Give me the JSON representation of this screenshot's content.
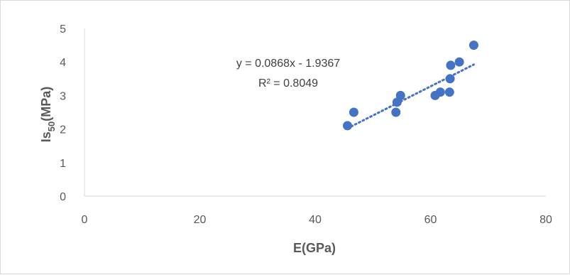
{
  "chart_data": {
    "type": "scatter",
    "title": "",
    "xlabel": "E(GPa)",
    "ylabel": {
      "main": "Is",
      "sub": "50",
      "rest": "(MPa)"
    },
    "xlim": [
      0,
      80
    ],
    "ylim": [
      0,
      5
    ],
    "xticks": [
      0,
      20,
      40,
      60,
      80
    ],
    "yticks": [
      0,
      1,
      2,
      3,
      4,
      5
    ],
    "grid": false,
    "legend": "none",
    "marker_color": "#4472c4",
    "trendline_color": "#4472c4",
    "series": [
      {
        "points": [
          {
            "x": 45.6,
            "y": 2.1
          },
          {
            "x": 46.7,
            "y": 2.5
          },
          {
            "x": 54.0,
            "y": 2.5
          },
          {
            "x": 54.2,
            "y": 2.8
          },
          {
            "x": 54.8,
            "y": 3.0
          },
          {
            "x": 60.8,
            "y": 3.0
          },
          {
            "x": 61.7,
            "y": 3.1
          },
          {
            "x": 63.3,
            "y": 3.1
          },
          {
            "x": 63.4,
            "y": 3.5
          },
          {
            "x": 63.5,
            "y": 3.9
          },
          {
            "x": 65.0,
            "y": 4.0
          },
          {
            "x": 67.5,
            "y": 4.5
          }
        ]
      }
    ],
    "trendline": {
      "type": "linear",
      "slope": 0.0868,
      "intercept": -1.9367,
      "x_range": [
        45.6,
        67.5
      ],
      "equation_label": "y = 0.0868x - 1.9367",
      "r2_label": "R² = 0.8049"
    }
  }
}
